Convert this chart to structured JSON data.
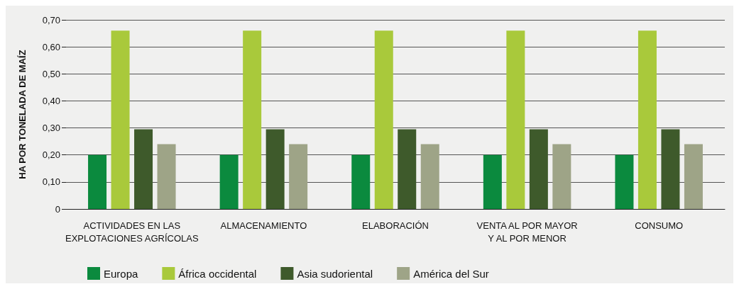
{
  "chart_data": {
    "type": "bar",
    "ylabel": "HA POR TONELADA DE MAÍZ",
    "categories": [
      "ACTIVIDADES EN LAS\nEXPLOTACIONES AGRÍCOLAS",
      "ALMACENAMIENTO",
      "ELABORACIÓN",
      "VENTA AL POR MAYOR\nY AL POR MENOR",
      "CONSUMO"
    ],
    "series": [
      {
        "name": "Europa",
        "color": "#0b8a3e",
        "values": [
          0.2,
          0.2,
          0.2,
          0.2,
          0.2
        ]
      },
      {
        "name": "África occidental",
        "color": "#a9c93b",
        "values": [
          0.66,
          0.66,
          0.66,
          0.66,
          0.66
        ]
      },
      {
        "name": "Asia sudoriental",
        "color": "#3e5a2b",
        "values": [
          0.295,
          0.295,
          0.295,
          0.295,
          0.295
        ]
      },
      {
        "name": "América del Sur",
        "color": "#9ea487",
        "values": [
          0.24,
          0.24,
          0.24,
          0.24,
          0.24
        ]
      }
    ],
    "ylim": [
      0,
      0.7
    ],
    "yticks": [
      {
        "value": 0,
        "label": "0"
      },
      {
        "value": 0.1,
        "label": "0,10"
      },
      {
        "value": 0.2,
        "label": "0,20"
      },
      {
        "value": 0.3,
        "label": "0,30"
      },
      {
        "value": 0.4,
        "label": "0,40"
      },
      {
        "value": 0.5,
        "label": "0,50"
      },
      {
        "value": 0.6,
        "label": "0,60"
      },
      {
        "value": 0.7,
        "label": "0,70"
      }
    ],
    "grid": "y",
    "legend": "bottom left"
  }
}
